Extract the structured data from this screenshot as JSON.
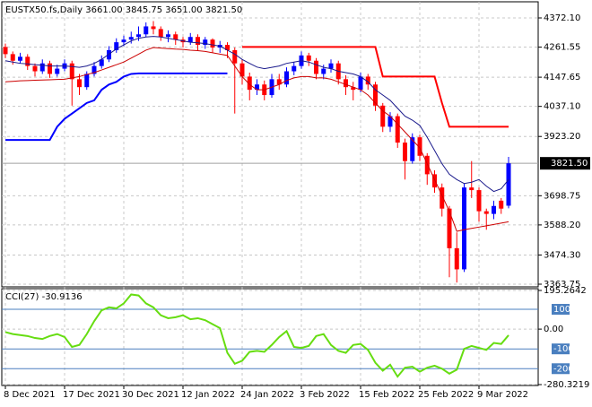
{
  "chart_data": [
    {
      "type": "candlestick",
      "title": "EUSTX50.fs,Daily  3661.00 3845.75 3651.00 3821.50",
      "categories": [
        "8 Dec 2021",
        null,
        null,
        null,
        null,
        null,
        null,
        null,
        "17 Dec 2021",
        null,
        null,
        null,
        null,
        null,
        null,
        null,
        "30 Dec 2021",
        null,
        null,
        null,
        null,
        null,
        null,
        null,
        "12 Jan 2022",
        null,
        null,
        null,
        null,
        null,
        null,
        null,
        "24 Jan 2022",
        null,
        null,
        null,
        null,
        null,
        null,
        null,
        "3 Feb 2022",
        null,
        null,
        null,
        null,
        null,
        null,
        null,
        "15 Feb 2022",
        null,
        null,
        null,
        null,
        null,
        null,
        null,
        "25 Feb 2022",
        null,
        null,
        null,
        null,
        null,
        null,
        null,
        "9 Mar 2022",
        null,
        null,
        null,
        null
      ],
      "open": [
        4262,
        4235,
        4210,
        4225,
        4190,
        4170,
        4200,
        4160,
        4180,
        4200,
        4140,
        4110,
        4160,
        4190,
        4215,
        4250,
        4280,
        4290,
        4300,
        4310,
        4340,
        4330,
        4300,
        4310,
        4290,
        4280,
        4300,
        4270,
        4290,
        4260,
        4270,
        4250,
        4200,
        4150,
        4100,
        4120,
        4080,
        4140,
        4120,
        4170,
        4190,
        4230,
        4210,
        4160,
        4180,
        4200,
        4140,
        4110,
        4100,
        4150,
        4120,
        4040,
        3960,
        4000,
        3900,
        3830,
        3920,
        3850,
        3780,
        3730,
        3650,
        3500,
        3420,
        3730,
        3720,
        3640,
        3630,
        3680,
        3661
      ],
      "high": [
        4275,
        4245,
        4240,
        4235,
        4200,
        4215,
        4210,
        4195,
        4215,
        4210,
        4160,
        4170,
        4205,
        4230,
        4265,
        4295,
        4305,
        4320,
        4340,
        4355,
        4360,
        4340,
        4325,
        4320,
        4300,
        4315,
        4310,
        4300,
        4295,
        4285,
        4280,
        4260,
        4215,
        4165,
        4140,
        4135,
        4160,
        4160,
        4185,
        4205,
        4245,
        4240,
        4220,
        4195,
        4215,
        4210,
        4155,
        4130,
        4165,
        4160,
        4130,
        4050,
        4015,
        4010,
        3915,
        3935,
        3930,
        3860,
        3795,
        3745,
        3660,
        3560,
        3745,
        3830,
        3730,
        3650,
        3680,
        3690,
        3845.75
      ],
      "low": [
        4220,
        4195,
        4200,
        4175,
        4150,
        4160,
        4145,
        4150,
        4170,
        4040,
        4080,
        4100,
        4150,
        4180,
        4205,
        4240,
        4265,
        4275,
        4285,
        4300,
        4310,
        4285,
        4280,
        4270,
        4260,
        4270,
        4250,
        4255,
        4240,
        4240,
        4220,
        4010,
        4120,
        4060,
        4080,
        4060,
        4070,
        4100,
        4110,
        4155,
        4180,
        4190,
        4140,
        4140,
        4165,
        4120,
        4080,
        4060,
        4090,
        4100,
        4020,
        3940,
        3940,
        3880,
        3760,
        3820,
        3830,
        3740,
        3710,
        3620,
        3390,
        3370,
        3410,
        3690,
        3600,
        3570,
        3610,
        3630,
        3651
      ],
      "close": [
        4235,
        4210,
        4225,
        4190,
        4170,
        4200,
        4160,
        4180,
        4200,
        4140,
        4110,
        4160,
        4190,
        4215,
        4250,
        4280,
        4290,
        4300,
        4310,
        4340,
        4330,
        4300,
        4310,
        4290,
        4280,
        4300,
        4270,
        4290,
        4260,
        4270,
        4250,
        4200,
        4150,
        4100,
        4120,
        4080,
        4140,
        4120,
        4170,
        4190,
        4230,
        4210,
        4160,
        4180,
        4200,
        4140,
        4110,
        4100,
        4150,
        4120,
        4040,
        3960,
        4000,
        3900,
        3830,
        3920,
        3850,
        3780,
        3730,
        3650,
        3500,
        3420,
        3730,
        3720,
        3640,
        3630,
        3660,
        3650,
        3821.5
      ],
      "up_color": "#0000ff",
      "down_color": "#ff0000",
      "series": [
        {
          "color": "#1a1a8c",
          "width": 1,
          "values": [
            4210,
            4205,
            4200,
            4198,
            4195,
            4193,
            4190,
            4190,
            4190,
            4188,
            4185,
            4190,
            4200,
            4215,
            4235,
            4255,
            4270,
            4285,
            4295,
            4300,
            4302,
            4300,
            4295,
            4290,
            4285,
            4280,
            4278,
            4275,
            4270,
            4265,
            4250,
            4235,
            4215,
            4200,
            4186,
            4180,
            4185,
            4190,
            4200,
            4205,
            4210,
            4205,
            4195,
            4185,
            4180,
            4170,
            4165,
            4160,
            4150,
            4130,
            4100,
            4080,
            4060,
            4030,
            4000,
            3985,
            3965,
            3920,
            3870,
            3820,
            3780,
            3760,
            3745,
            3750,
            3760,
            3735,
            3715,
            3725,
            3760
          ]
        },
        {
          "color": "#cc0000",
          "width": 1,
          "values": [
            4130,
            4132,
            4134,
            4135,
            4136,
            4137,
            4138,
            4139,
            4140,
            4145,
            4150,
            4158,
            4165,
            4175,
            4185,
            4195,
            4205,
            4220,
            4235,
            4250,
            4260,
            4258,
            4256,
            4254,
            4253,
            4250,
            4248,
            4245,
            4240,
            4235,
            4230,
            4190,
            4150,
            4120,
            4100,
            4100,
            4110,
            4120,
            4135,
            4145,
            4150,
            4150,
            4145,
            4145,
            4140,
            4130,
            4120,
            4110,
            4100,
            4080,
            4050,
            4020,
            4000,
            3970,
            3940,
            3910,
            3880,
            3820,
            3760,
            3700,
            3640,
            3564,
            3570,
            3575,
            3580,
            3585,
            3590,
            3595,
            3600
          ]
        },
        {
          "color": "#ff0000",
          "width": 2,
          "values": [
            null,
            null,
            null,
            null,
            null,
            null,
            null,
            null,
            null,
            null,
            null,
            null,
            null,
            null,
            null,
            null,
            null,
            null,
            null,
            null,
            null,
            null,
            null,
            null,
            null,
            null,
            null,
            null,
            null,
            null,
            null,
            null,
            4262,
            4262,
            4262,
            4262,
            4262,
            4262,
            4262,
            4262,
            4262,
            4262,
            4262,
            4262,
            4262,
            4262,
            4262,
            4262,
            4262,
            4262,
            4262,
            4150,
            4150,
            4150,
            4150,
            4150,
            4150,
            4150,
            4150,
            4050,
            3960,
            3960,
            3960,
            3960,
            3960,
            3960,
            3960,
            3960,
            3960
          ]
        },
        {
          "color": "#0000ff",
          "width": 2,
          "values": [
            3910,
            3910,
            3910,
            3910,
            3910,
            3910,
            3910,
            3960,
            3990,
            4010,
            4030,
            4050,
            4060,
            4100,
            4120,
            4130,
            4150,
            4160,
            4162,
            4162,
            4162,
            4162,
            4162,
            4162,
            4162,
            4162,
            4162,
            4162,
            4162,
            4162,
            4162,
            null,
            null,
            null,
            null,
            null,
            null,
            null,
            null,
            null,
            null,
            null,
            null,
            null,
            null,
            null,
            null,
            null,
            null,
            null,
            null,
            null,
            null,
            null,
            null,
            null,
            null,
            null,
            null,
            null,
            null,
            null,
            null,
            null,
            null,
            null,
            null,
            null,
            null
          ]
        }
      ],
      "ylim": [
        3353.6,
        4426.4
      ],
      "yticks": [
        {
          "value": 4372.1,
          "label": "4372.10"
        },
        4261.55,
        4147.65,
        {
          "value": 4037.1,
          "label": "4037.10"
        },
        {
          "value": 3923.2,
          "label": "3923.20"
        },
        3698.75,
        {
          "value": 3588.2,
          "label": "3588.20"
        },
        {
          "value": 3474.3,
          "label": "3474.30"
        },
        3363.75
      ],
      "price_label": {
        "value": 3821.5,
        "label": "3821.50"
      },
      "grid": true
    },
    {
      "type": "line",
      "title": "CCI(27) -30.9136",
      "color": "#66dd11",
      "values": [
        -15,
        -25,
        -30,
        -35,
        -45,
        -50,
        -35,
        -25,
        -40,
        -90,
        -80,
        -25,
        40,
        95,
        110,
        105,
        130,
        175,
        170,
        130,
        110,
        70,
        55,
        60,
        70,
        50,
        55,
        45,
        25,
        5,
        -120,
        -175,
        -160,
        -115,
        -110,
        -115,
        -80,
        -40,
        -10,
        -90,
        -95,
        -85,
        -35,
        -25,
        -80,
        -110,
        -120,
        -80,
        -75,
        -105,
        -170,
        -210,
        -180,
        -240,
        -195,
        -190,
        -215,
        -195,
        -185,
        -200,
        -225,
        -205,
        -100,
        -85,
        -95,
        -105,
        -70,
        -75,
        -30.9136
      ],
      "ylim": [
        -280.3219,
        195.2642
      ],
      "yticks": [
        195.2642,
        {
          "value": 0,
          "label": "0.00"
        },
        -280.3219
      ],
      "levels": [
        100,
        -100,
        -200
      ],
      "level_color": "#4a7fbf",
      "grid": true
    }
  ]
}
